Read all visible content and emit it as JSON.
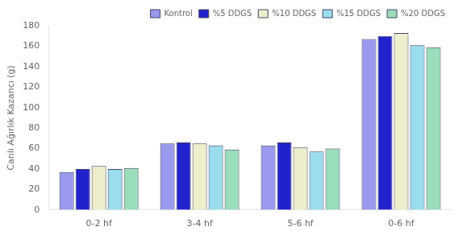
{
  "chart_data": {
    "type": "bar",
    "categories": [
      "0-2 hf",
      "3-4 hf",
      "5-6 hf",
      "0-6 hf"
    ],
    "series": [
      {
        "name": "Kontrol",
        "color": "#9999ee",
        "values": [
          37,
          65,
          63,
          167
        ]
      },
      {
        "name": "%5 DDGS",
        "color": "#2222cc",
        "values": [
          40,
          66,
          66,
          170
        ]
      },
      {
        "name": "%10 DDGS",
        "color": "#eeeecc",
        "values": [
          43,
          65,
          61,
          173
        ]
      },
      {
        "name": "%15 DDGS",
        "color": "#99ddee",
        "values": [
          40,
          63,
          57,
          161
        ]
      },
      {
        "name": "%20 DDGS",
        "color": "#99ddbb",
        "values": [
          41,
          59,
          60,
          159
        ]
      }
    ],
    "ylabel": "Canlı Ağırlık Kazancı (g)",
    "ylim": [
      0,
      180
    ],
    "yticks": [
      0,
      20,
      40,
      60,
      80,
      100,
      120,
      140,
      160,
      180
    ],
    "grid": false,
    "legend": "upper right"
  }
}
